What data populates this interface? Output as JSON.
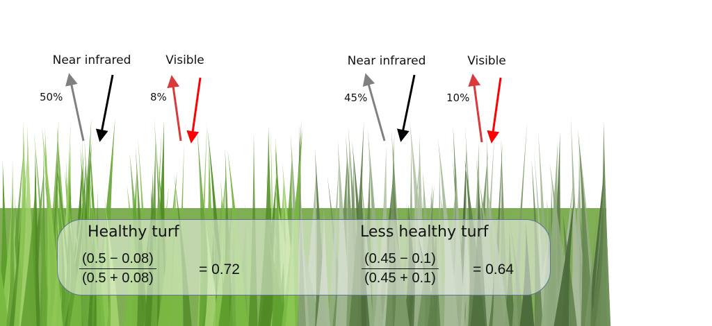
{
  "healthy": {
    "nir_label": "Near infrared",
    "visible_label": "Visible",
    "nir_reflect": "50%",
    "visible_reflect": "8%",
    "title": "Healthy turf",
    "numerator": "(0.5 − 0.08)",
    "denominator": "(0.5 + 0.08)",
    "result": "= 0.72"
  },
  "less_healthy": {
    "nir_label": "Near infrared",
    "visible_label": "Visible",
    "nir_reflect": "45%",
    "visible_reflect": "10%",
    "title": "Less healthy turf",
    "numerator": "(0.45 − 0.1)",
    "denominator": "(0.45 + 0.1)",
    "result": "= 0.64"
  },
  "colors": {
    "nir_reflected": "#808080",
    "nir_incoming": "#000000",
    "vis_reflected": "#d9393a",
    "vis_incoming": "#ff0000",
    "grass_healthy": "#6aa83a",
    "grass_less": "#6f8f5a"
  }
}
